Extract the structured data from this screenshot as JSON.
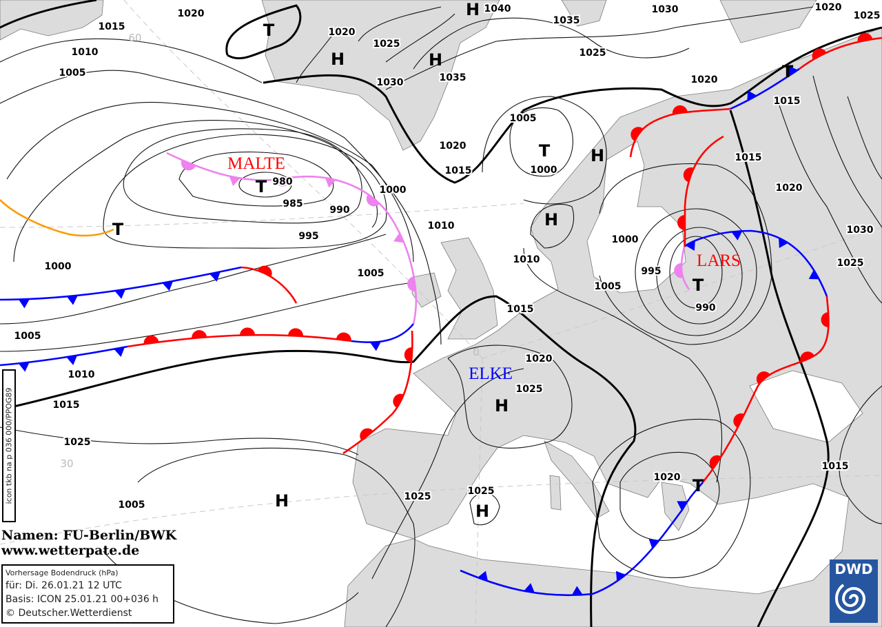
{
  "map": {
    "names_credit": "Namen: FU-Berlin/BWK",
    "website": "www.wetterpate.de",
    "vertical_code": "icon tkb na p 036 000/PPOG89",
    "info": {
      "title": "Vorhersage Bodendruck (hPa)",
      "valid": "für:  Di. 26.01.21  12 UTC",
      "basis": "Basis: ICON  25.01.21 00+036 h",
      "copyright": "© Deutscher.Wetterdienst"
    },
    "logo": "DWD",
    "grid_labels": [
      "60",
      "30",
      "0"
    ],
    "front_names": [
      "MALTE",
      "LARS",
      "ELKE"
    ],
    "colors": {
      "cold_front": "#0000ff",
      "warm_front": "#ff0000",
      "occlusion": "#ee82ee",
      "trough": "#ff9900",
      "land": "#dcdcdc",
      "dwd_blue": "#2756a0"
    },
    "isobar_labels": [
      "1020",
      "1015",
      "1010",
      "1005",
      "1020",
      "1025",
      "1030",
      "1035",
      "1040",
      "1035",
      "1030",
      "1025",
      "1020",
      "1025",
      "1020",
      "1015",
      "1005",
      "1000",
      "1020",
      "1015",
      "980",
      "985",
      "990",
      "995",
      "1000",
      "1010",
      "1000",
      "1005",
      "1010",
      "1000",
      "995",
      "1005",
      "990",
      "1015",
      "1015",
      "1020",
      "1030",
      "1025",
      "1005",
      "1010",
      "1015",
      "1020",
      "1025",
      "1025",
      "1025",
      "1025",
      "1005",
      "1020",
      "1015"
    ],
    "pressure_centers": [
      "T",
      "H",
      "H",
      "H",
      "T",
      "H",
      "H",
      "T",
      "T",
      "T",
      "T",
      "H",
      "H",
      "H",
      "T"
    ]
  }
}
